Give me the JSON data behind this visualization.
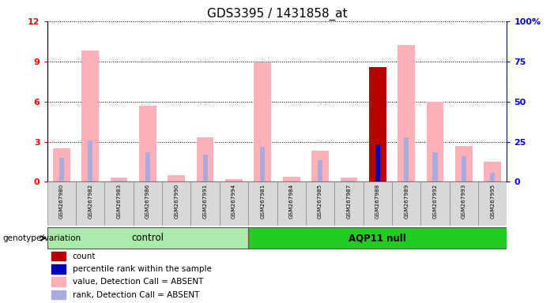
{
  "title": "GDS3395 / 1431858_at",
  "samples": [
    "GSM267980",
    "GSM267982",
    "GSM267983",
    "GSM267986",
    "GSM267990",
    "GSM267991",
    "GSM267994",
    "GSM267981",
    "GSM267984",
    "GSM267985",
    "GSM267987",
    "GSM267988",
    "GSM267989",
    "GSM267992",
    "GSM267993",
    "GSM267995"
  ],
  "n_control": 7,
  "n_aqp": 9,
  "pink_bars": [
    2.5,
    9.8,
    0.3,
    5.7,
    0.5,
    3.3,
    0.2,
    8.9,
    0.4,
    2.3,
    0.3,
    9.0,
    10.2,
    6.0,
    2.7,
    1.5
  ],
  "rank_bars": [
    1.8,
    3.1,
    0.0,
    2.2,
    0.0,
    2.0,
    0.0,
    2.6,
    0.0,
    1.6,
    0.0,
    0.0,
    3.3,
    2.2,
    1.9,
    0.7
  ],
  "red_bar_index": 11,
  "red_bar_value": 8.6,
  "blue_bar_index": 11,
  "blue_bar_value": 2.8,
  "ylim_left": [
    0,
    12
  ],
  "ylim_right": [
    0,
    100
  ],
  "yticks_left": [
    0,
    3,
    6,
    9,
    12
  ],
  "ytick_labels_left": [
    "0",
    "3",
    "6",
    "9",
    "12"
  ],
  "ytick_labels_right": [
    "0",
    "25",
    "50",
    "75",
    "100%"
  ],
  "pink_color": "#FFB0B8",
  "rank_color": "#AAAADD",
  "red_color": "#BB0000",
  "blue_color": "#0000BB",
  "group_control_color": "#AAEAAA",
  "group_aqp_color": "#22CC22",
  "legend_items": [
    "count",
    "percentile rank within the sample",
    "value, Detection Call = ABSENT",
    "rank, Detection Call = ABSENT"
  ],
  "legend_colors": [
    "#BB0000",
    "#0000BB",
    "#FFB0B8",
    "#AAAADD"
  ]
}
